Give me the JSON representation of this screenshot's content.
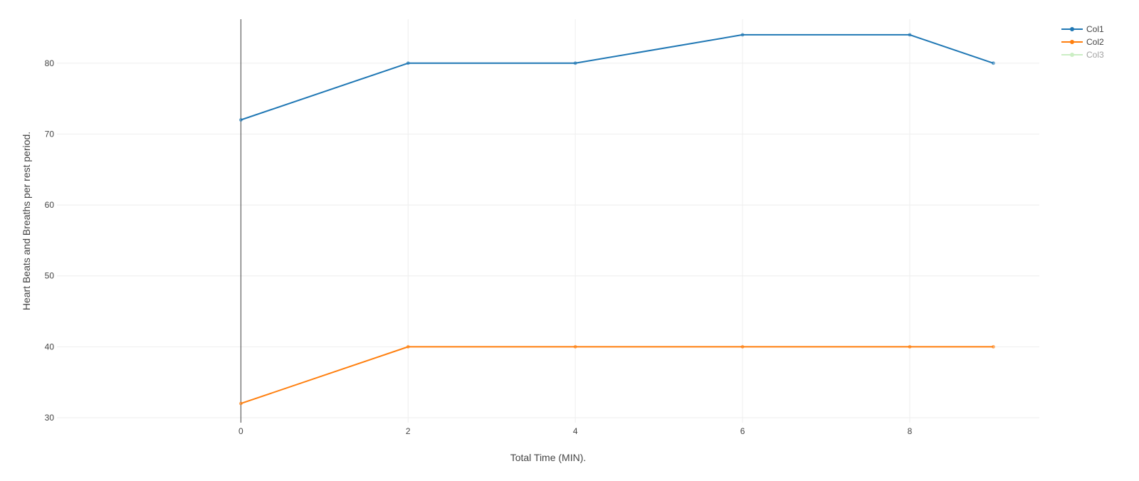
{
  "chart_data": {
    "type": "line",
    "xlabel": "Total Time (MIN).",
    "ylabel": "Heart Beats and Breaths per rest period.",
    "xlim": [
      -2.2,
      9.55
    ],
    "ylim": [
      29.3,
      86.2
    ],
    "xticks": [
      0,
      2,
      4,
      6,
      8
    ],
    "yticks": [
      30,
      40,
      50,
      60,
      70,
      80
    ],
    "grid": true,
    "legend_position": "top-right",
    "series": [
      {
        "name": "Col1",
        "color": "#1f77b4",
        "visible": true,
        "x": [
          0,
          2,
          4,
          6,
          8,
          9
        ],
        "values": [
          72,
          80,
          80,
          84,
          84,
          80
        ]
      },
      {
        "name": "Col2",
        "color": "#ff7f0e",
        "visible": true,
        "x": [
          0,
          2,
          4,
          6,
          8,
          9
        ],
        "values": [
          32,
          40,
          40,
          40,
          40,
          40
        ]
      },
      {
        "name": "Col3",
        "color": "#98df8a",
        "visible": false,
        "x": [],
        "values": []
      }
    ]
  }
}
